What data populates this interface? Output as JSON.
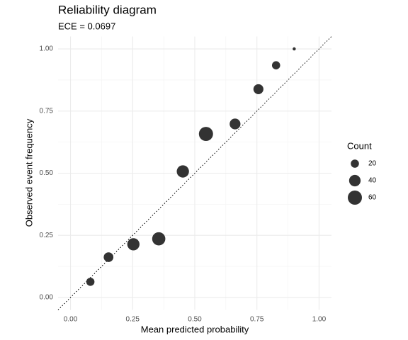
{
  "chart_data": {
    "type": "scatter",
    "title": "Reliability diagram",
    "subtitle": "ECE = 0.0697",
    "x_label": "Mean predicted probability",
    "y_label": "Observed event frequency",
    "x": [
      0.08,
      0.153,
      0.253,
      0.355,
      0.452,
      0.545,
      0.662,
      0.756,
      0.827,
      0.9
    ],
    "series": [
      {
        "color": "#333333",
        "values": [
          0.063,
          0.162,
          0.214,
          0.236,
          0.507,
          0.658,
          0.698,
          0.838,
          0.934,
          1.0
        ],
        "sizes": [
          20,
          28,
          45,
          52,
          45,
          60,
          35,
          30,
          20,
          3
        ]
      }
    ],
    "size_legend": {
      "title": "Count",
      "values": [
        20,
        40,
        60
      ]
    },
    "xlim": [
      -0.05,
      1.05
    ],
    "ylim": [
      -0.05,
      1.05
    ],
    "xticks": [
      {
        "value": 0,
        "label": "0.00"
      },
      {
        "value": 0.25,
        "label": "0.25"
      },
      {
        "value": 0.5,
        "label": "0.50"
      },
      {
        "value": 0.75,
        "label": "0.75"
      },
      {
        "value": 1,
        "label": "1.00"
      }
    ],
    "yticks": [
      {
        "value": 0,
        "label": "0.00"
      },
      {
        "value": 0.25,
        "label": "0.25"
      },
      {
        "value": 0.5,
        "label": "0.50"
      },
      {
        "value": 0.75,
        "label": "0.75"
      },
      {
        "value": 1,
        "label": "1.00"
      }
    ],
    "minor_grid": [
      0.125,
      0.375,
      0.625,
      0.875
    ],
    "grid": true,
    "diagonal": true
  }
}
